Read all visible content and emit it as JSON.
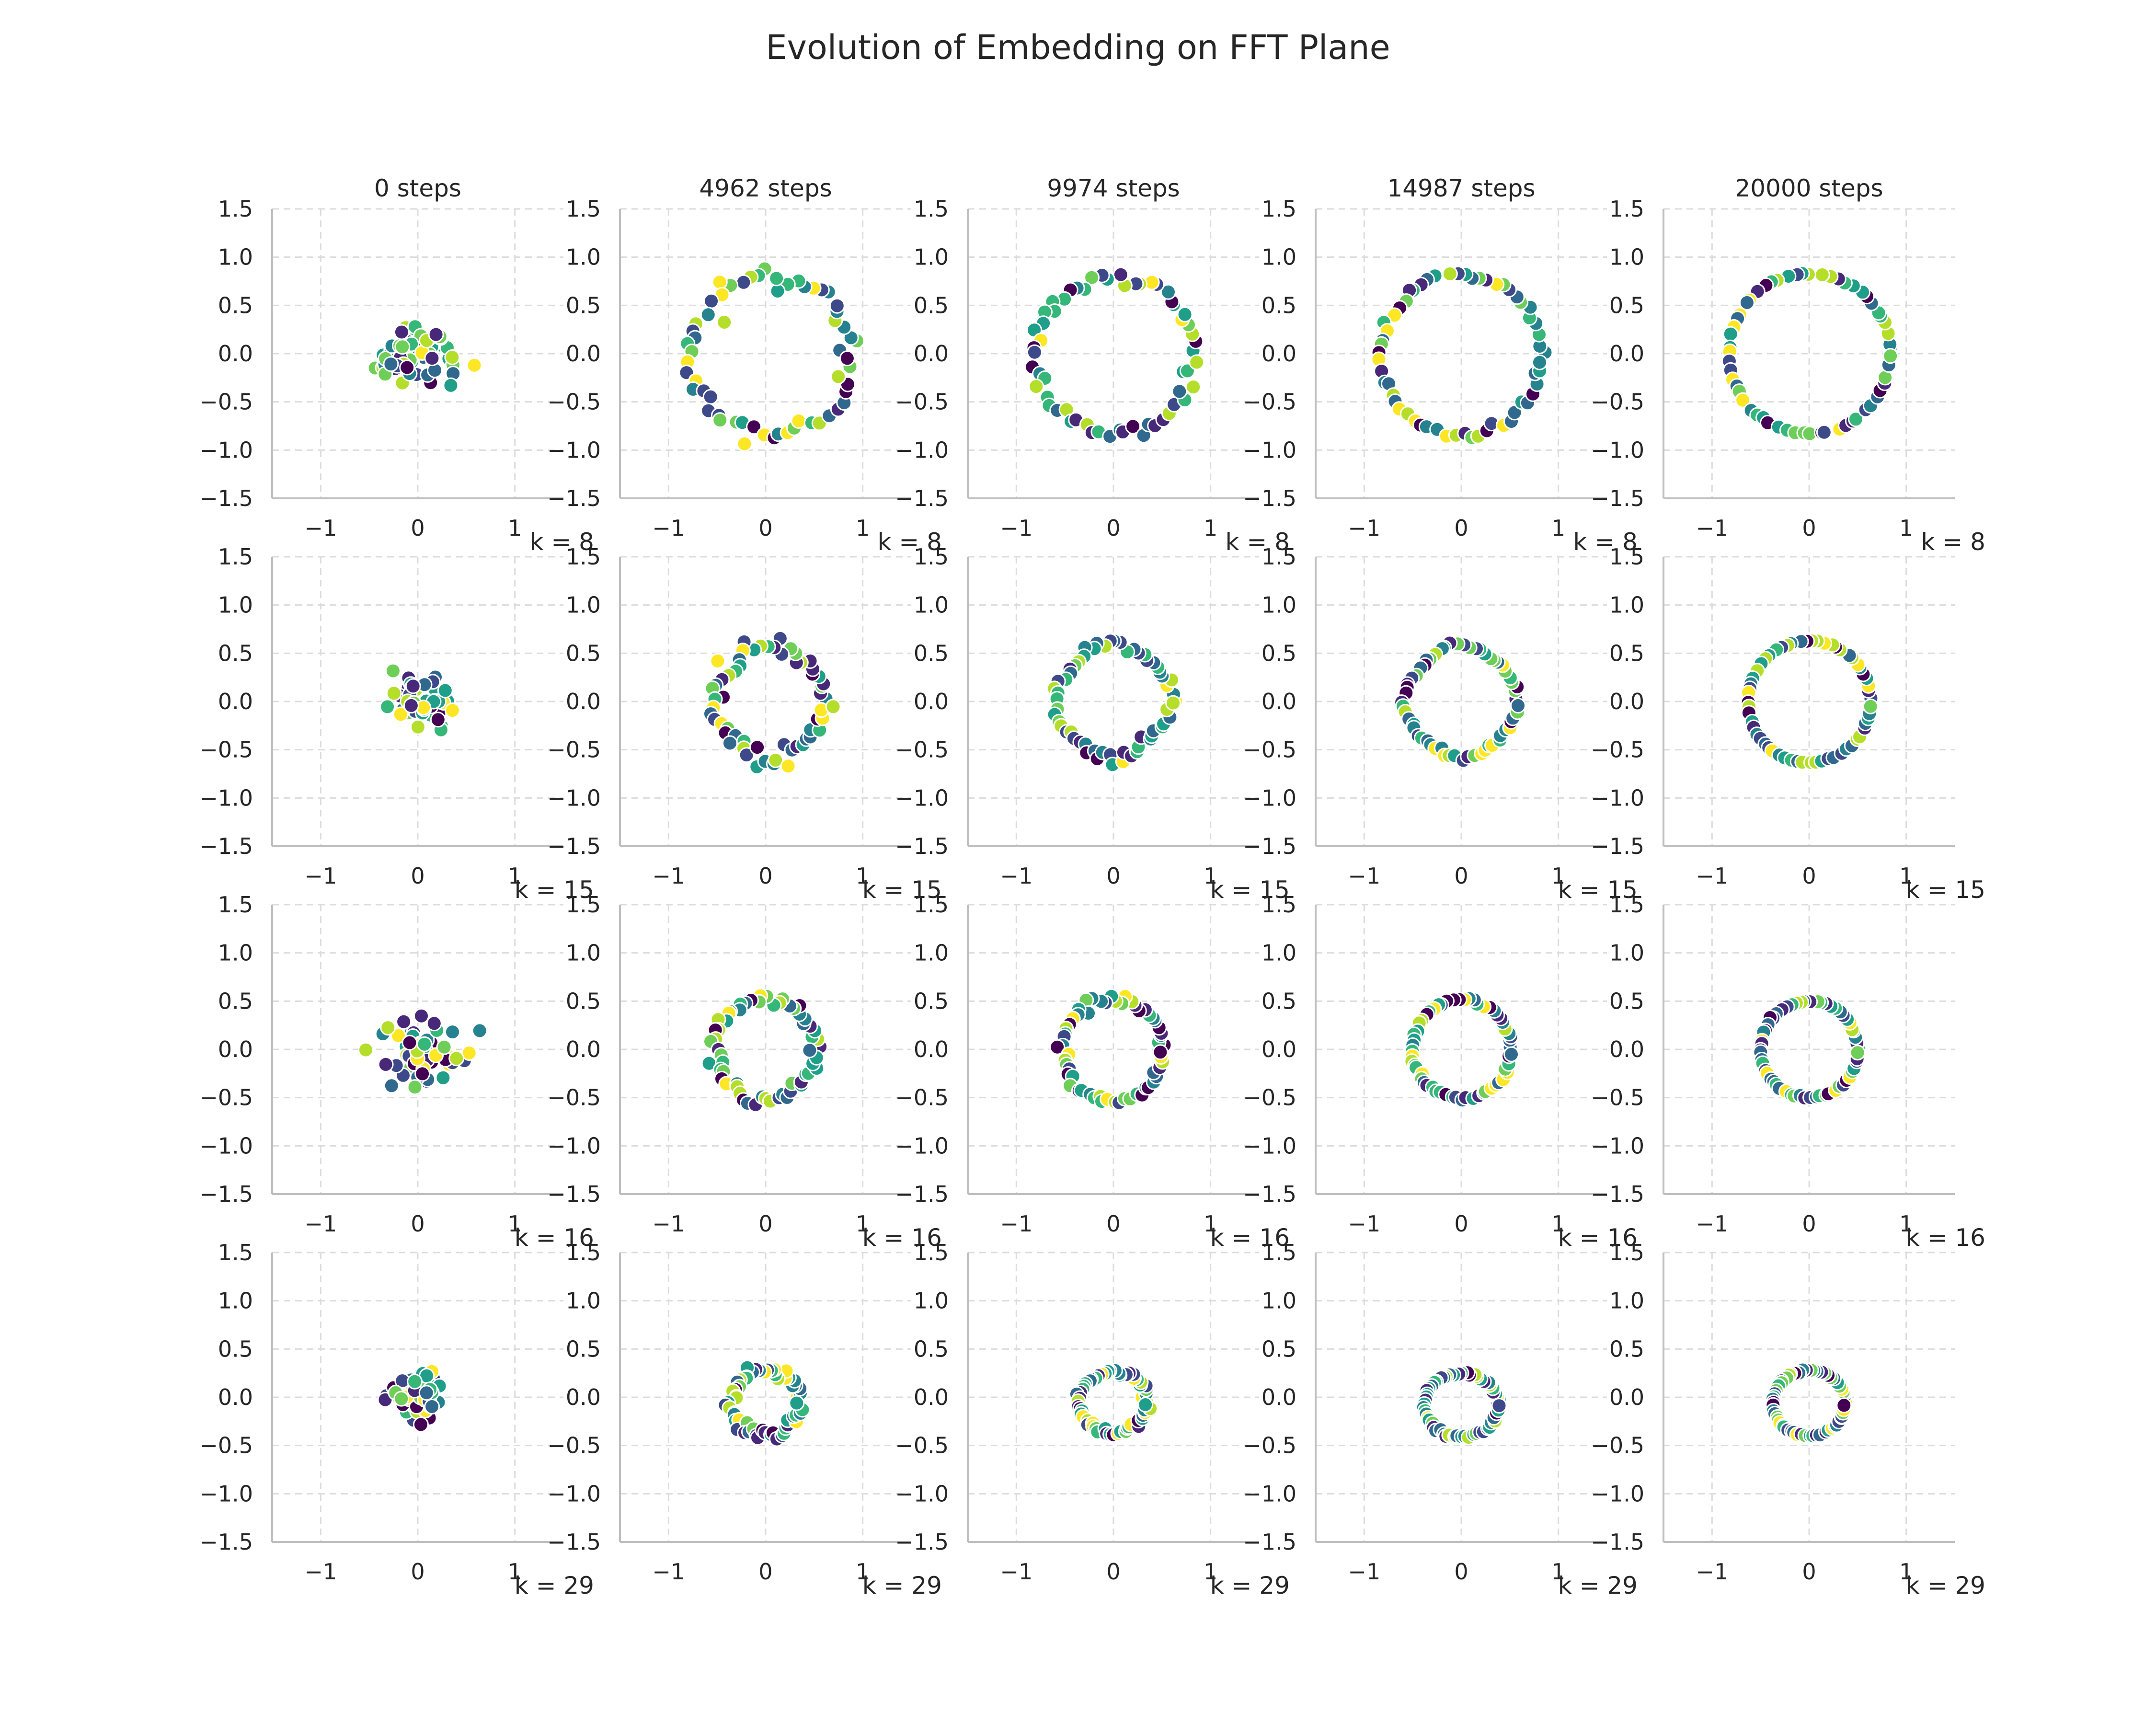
{
  "title": "Evolution of Embedding on FFT Plane",
  "chart_data": {
    "type": "scatter",
    "title": "Evolution of Embedding on FFT Plane",
    "layout": "4 rows x 5 columns of small multiples",
    "columns": [
      "0 steps",
      "4962 steps",
      "9974 steps",
      "14987 steps",
      "20000 steps"
    ],
    "rows": [
      {
        "label": "k = 8",
        "k": 8
      },
      {
        "label": "k = 15",
        "k": 15
      },
      {
        "label": "k = 16",
        "k": 16
      },
      {
        "label": "k = 29",
        "k": 29
      }
    ],
    "xlim": [
      -1.5,
      1.5
    ],
    "ylim": [
      -1.5,
      1.5
    ],
    "xticks": [
      -1,
      0,
      1
    ],
    "xtick_labels": [
      "−1",
      "0",
      "1"
    ],
    "yticks": [
      -1.5,
      -1.0,
      -0.5,
      0.0,
      0.5,
      1.0,
      1.5
    ],
    "ytick_labels": [
      "−1.5",
      "−1.0",
      "−0.5",
      "0.0",
      "0.5",
      "1.0",
      "1.5"
    ],
    "grid": true,
    "colormap": "viridis",
    "point_count_per_panel": 59,
    "panels": [
      {
        "row": 0,
        "col": 0,
        "shape": "cluster",
        "center": [
          0.0,
          0.0
        ],
        "spread": [
          0.28,
          0.22
        ]
      },
      {
        "row": 0,
        "col": 1,
        "shape": "ring",
        "center": [
          0.05,
          -0.02
        ],
        "radius": [
          0.82,
          0.82
        ],
        "noise": 0.07
      },
      {
        "row": 0,
        "col": 2,
        "shape": "ring",
        "center": [
          0.02,
          -0.02
        ],
        "radius": [
          0.82,
          0.82
        ],
        "noise": 0.05
      },
      {
        "row": 0,
        "col": 3,
        "shape": "ring",
        "center": [
          0.0,
          -0.01
        ],
        "radius": [
          0.83,
          0.83
        ],
        "noise": 0.025
      },
      {
        "row": 0,
        "col": 4,
        "shape": "ring",
        "center": [
          0.0,
          0.0
        ],
        "radius": [
          0.83,
          0.83
        ],
        "noise": 0.008
      },
      {
        "row": 1,
        "col": 0,
        "shape": "cluster",
        "center": [
          0.05,
          0.0
        ],
        "spread": [
          0.22,
          0.18
        ]
      },
      {
        "row": 1,
        "col": 1,
        "shape": "ring",
        "center": [
          0.05,
          0.0
        ],
        "radius": [
          0.65,
          0.65
        ],
        "noise": 0.09,
        "diamond": true
      },
      {
        "row": 1,
        "col": 2,
        "shape": "ring",
        "center": [
          0.0,
          0.0
        ],
        "radius": [
          0.65,
          0.67
        ],
        "noise": 0.06,
        "diamond": true
      },
      {
        "row": 1,
        "col": 3,
        "shape": "ring",
        "center": [
          0.0,
          0.0
        ],
        "radius": [
          0.64,
          0.65
        ],
        "noise": 0.03,
        "diamond": true
      },
      {
        "row": 1,
        "col": 4,
        "shape": "ring",
        "center": [
          0.0,
          0.0
        ],
        "radius": [
          0.63,
          0.63
        ],
        "noise": 0.01
      },
      {
        "row": 2,
        "col": 0,
        "shape": "cluster",
        "center": [
          0.05,
          -0.05
        ],
        "spread": [
          0.26,
          0.17
        ]
      },
      {
        "row": 2,
        "col": 1,
        "shape": "ring",
        "center": [
          0.0,
          0.0
        ],
        "radius": [
          0.52,
          0.52
        ],
        "noise": 0.07
      },
      {
        "row": 2,
        "col": 2,
        "shape": "ring",
        "center": [
          0.0,
          0.0
        ],
        "radius": [
          0.52,
          0.52
        ],
        "noise": 0.05
      },
      {
        "row": 2,
        "col": 3,
        "shape": "ring",
        "center": [
          0.0,
          0.0
        ],
        "radius": [
          0.51,
          0.51
        ],
        "noise": 0.025
      },
      {
        "row": 2,
        "col": 4,
        "shape": "ring",
        "center": [
          0.0,
          0.0
        ],
        "radius": [
          0.5,
          0.5
        ],
        "noise": 0.012
      },
      {
        "row": 3,
        "col": 0,
        "shape": "cluster",
        "center": [
          0.0,
          0.0
        ],
        "spread": [
          0.17,
          0.16
        ]
      },
      {
        "row": 3,
        "col": 1,
        "shape": "ring",
        "center": [
          0.0,
          -0.05
        ],
        "radius": [
          0.35,
          0.35
        ],
        "noise": 0.1
      },
      {
        "row": 3,
        "col": 2,
        "shape": "ring",
        "center": [
          0.0,
          -0.05
        ],
        "radius": [
          0.35,
          0.32
        ],
        "noise": 0.06
      },
      {
        "row": 3,
        "col": 3,
        "shape": "ring",
        "center": [
          0.0,
          -0.08
        ],
        "radius": [
          0.38,
          0.33
        ],
        "noise": 0.03
      },
      {
        "row": 3,
        "col": 4,
        "shape": "ring",
        "center": [
          0.0,
          -0.06
        ],
        "radius": [
          0.37,
          0.34
        ],
        "noise": 0.015
      }
    ]
  }
}
